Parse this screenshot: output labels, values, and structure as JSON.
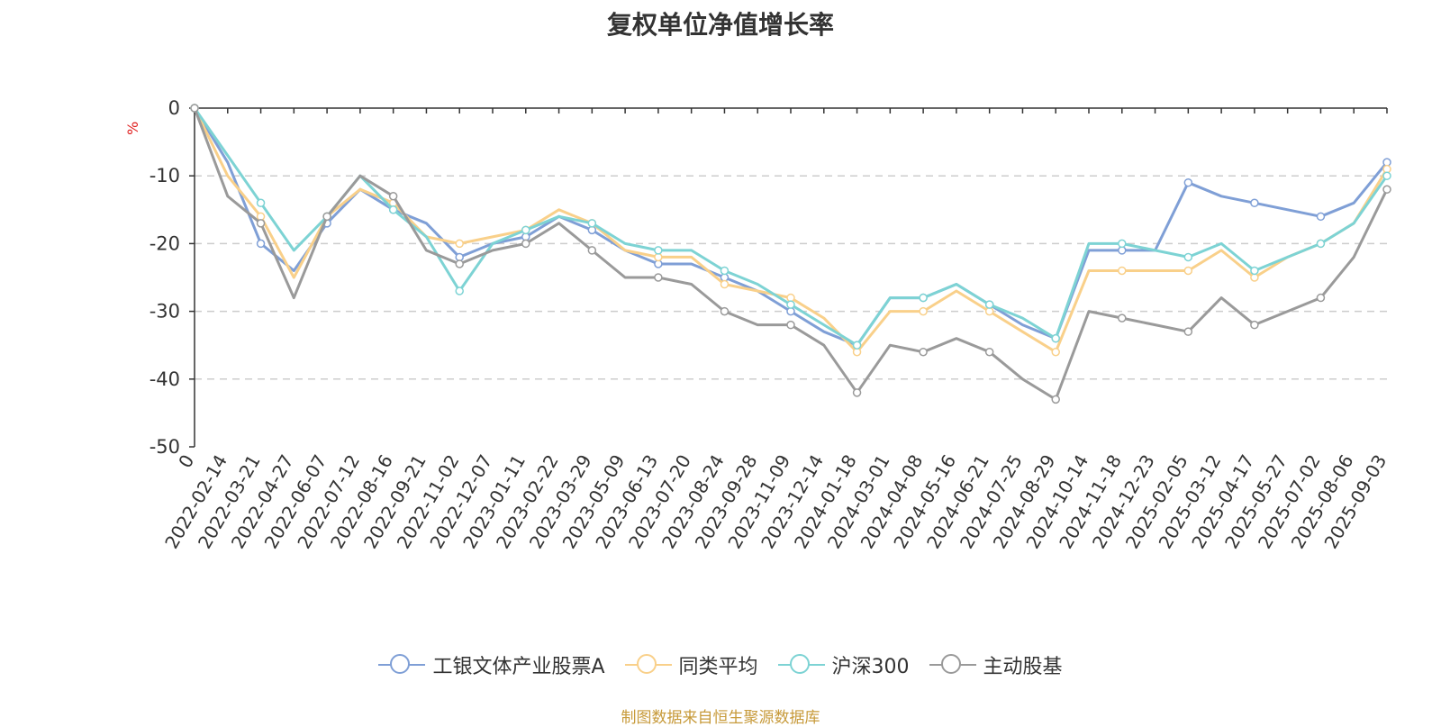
{
  "chart_data": {
    "type": "line",
    "title": "复权单位净值增长率",
    "ylabel": "%",
    "ylim": [
      -50,
      0
    ],
    "yticks": [
      0,
      -10,
      -20,
      -30,
      -40,
      -50
    ],
    "grid": true,
    "legend_position": "bottom",
    "x_tick_labels": [
      "0",
      "2022-02-14",
      "2022-03-21",
      "2022-04-27",
      "2022-06-07",
      "2022-07-12",
      "2022-08-16",
      "2022-09-21",
      "2022-11-02",
      "2022-12-07",
      "2023-01-11",
      "2023-02-22",
      "2023-03-29",
      "2023-05-09",
      "2023-06-13",
      "2023-07-20",
      "2023-08-24",
      "2023-09-28",
      "2023-11-09",
      "2023-12-14",
      "2024-01-18",
      "2024-03-01",
      "2024-04-08",
      "2024-05-16",
      "2024-06-21",
      "2024-07-25",
      "2024-08-29",
      "2024-10-14",
      "2024-11-18",
      "2024-12-23",
      "2025-02-05",
      "2025-03-12",
      "2025-04-17",
      "2025-05-27",
      "2025-07-02",
      "2025-08-06",
      "2025-09-03"
    ],
    "x": [
      "0",
      "2022-02-14",
      "2022-03-21",
      "2022-04-27",
      "2022-06-07",
      "2022-07-12",
      "2022-08-16",
      "2022-09-21",
      "2022-11-02",
      "2022-12-07",
      "2023-01-11",
      "2023-02-22",
      "2023-03-29",
      "2023-05-09",
      "2023-06-13",
      "2023-07-20",
      "2023-08-24",
      "2023-09-28",
      "2023-11-09",
      "2023-12-14",
      "2024-01-18",
      "2024-03-01",
      "2024-04-08",
      "2024-05-16",
      "2024-06-21",
      "2024-07-25",
      "2024-08-29",
      "2024-10-14",
      "2024-11-18",
      "2024-12-23",
      "2025-02-05",
      "2025-03-12",
      "2025-04-17",
      "2025-05-27",
      "2025-07-02",
      "2025-08-06",
      "2025-09-03"
    ],
    "series": [
      {
        "name": "工银文体产业股票A",
        "color": "#7f9fd6",
        "values": [
          0,
          -8,
          -20,
          -24,
          -17,
          -12,
          -15,
          -17,
          -22,
          -20,
          -19,
          -16,
          -18,
          -21,
          -23,
          -23,
          -25,
          -27,
          -30,
          -33,
          -35,
          -28,
          -28,
          -26,
          -29,
          -32,
          -34,
          -21,
          -21,
          -21,
          -11,
          -13,
          -14,
          -15,
          -16,
          -14,
          -8
        ]
      },
      {
        "name": "同类平均",
        "color": "#f9d08a",
        "values": [
          0,
          -10,
          -16,
          -25,
          -16,
          -12,
          -14,
          -19,
          -20,
          -19,
          -18,
          -15,
          -17,
          -21,
          -22,
          -22,
          -26,
          -27,
          -28,
          -31,
          -36,
          -30,
          -30,
          -27,
          -30,
          -33,
          -36,
          -24,
          -24,
          -24,
          -24,
          -21,
          -25,
          -22,
          -20,
          -17,
          -9
        ]
      },
      {
        "name": "沪深300",
        "color": "#7dd3d4",
        "values": [
          0,
          -7,
          -14,
          -21,
          -16,
          -10,
          -15,
          -19,
          -27,
          -20,
          -18,
          -16,
          -17,
          -20,
          -21,
          -21,
          -24,
          -26,
          -29,
          -32,
          -35,
          -28,
          -28,
          -26,
          -29,
          -31,
          -34,
          -20,
          -20,
          -21,
          -22,
          -20,
          -24,
          -22,
          -20,
          -17,
          -10
        ]
      },
      {
        "name": "主动股基",
        "color": "#9a9a9a",
        "values": [
          0,
          -13,
          -17,
          -28,
          -16,
          -10,
          -13,
          -21,
          -23,
          -21,
          -20,
          -17,
          -21,
          -25,
          -25,
          -26,
          -30,
          -32,
          -32,
          -35,
          -42,
          -35,
          -36,
          -34,
          -36,
          -40,
          -43,
          -30,
          -31,
          -32,
          -33,
          -28,
          -32,
          -30,
          -28,
          -22,
          -12
        ]
      }
    ]
  },
  "source_text": "制图数据来自恒生聚源数据库"
}
